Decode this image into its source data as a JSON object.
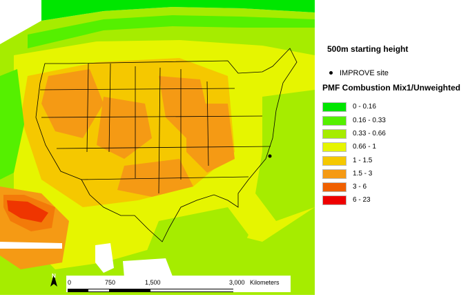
{
  "map_title": "500m starting height",
  "site_legend": {
    "symbol": "filled-dot",
    "label": "IMPROVE site"
  },
  "product_title": "PMF Combustion Mix1/Unweighted",
  "legend_classes": [
    {
      "label": "0 - 0.16",
      "color": "#00e600"
    },
    {
      "label": "0.16 - 0.33",
      "color": "#55f000"
    },
    {
      "label": "0.33 - 0.66",
      "color": "#a6ec00"
    },
    {
      "label": "0.66 - 1",
      "color": "#e6f500"
    },
    {
      "label": "1 - 1.5",
      "color": "#f5c800"
    },
    {
      "label": "1.5 - 3",
      "color": "#f59a14"
    },
    {
      "label": "3 - 6",
      "color": "#f06000"
    },
    {
      "label": "6 - 23",
      "color": "#ee0000"
    }
  ],
  "scale_bar": {
    "tick_labels": [
      "0",
      "750",
      "1,500",
      "3,000"
    ],
    "unit": "Kilometers"
  },
  "north_arrow": {
    "label": "N",
    "icon": "north-arrow-icon"
  },
  "site_marker_icon": "improve-site-dot-icon"
}
